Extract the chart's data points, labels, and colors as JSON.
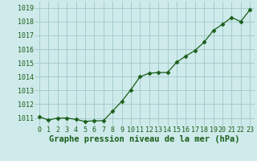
{
  "x": [
    0,
    1,
    2,
    3,
    4,
    5,
    6,
    7,
    8,
    9,
    10,
    11,
    12,
    13,
    14,
    15,
    16,
    17,
    18,
    19,
    20,
    21,
    22,
    23
  ],
  "y": [
    1011.1,
    1010.85,
    1011.0,
    1011.0,
    1010.9,
    1010.75,
    1010.8,
    1010.8,
    1011.5,
    1012.2,
    1013.05,
    1014.0,
    1014.25,
    1014.3,
    1014.3,
    1015.05,
    1015.5,
    1015.9,
    1016.5,
    1017.35,
    1017.8,
    1018.3,
    1018.0,
    1018.85
  ],
  "line_color": "#1a5e1a",
  "marker": "D",
  "markersize": 2.5,
  "bg_color": "#ceeaea",
  "grid_color": "#a0c8c8",
  "xlabel": "Graphe pression niveau de la mer (hPa)",
  "xlabel_color": "#1a5e1a",
  "xlabel_fontsize": 7.5,
  "tick_color": "#1a5e1a",
  "tick_fontsize": 6,
  "ylim": [
    1010.45,
    1019.45
  ],
  "yticks": [
    1011,
    1012,
    1013,
    1014,
    1015,
    1016,
    1017,
    1018,
    1019
  ],
  "xlim": [
    -0.5,
    23.5
  ]
}
